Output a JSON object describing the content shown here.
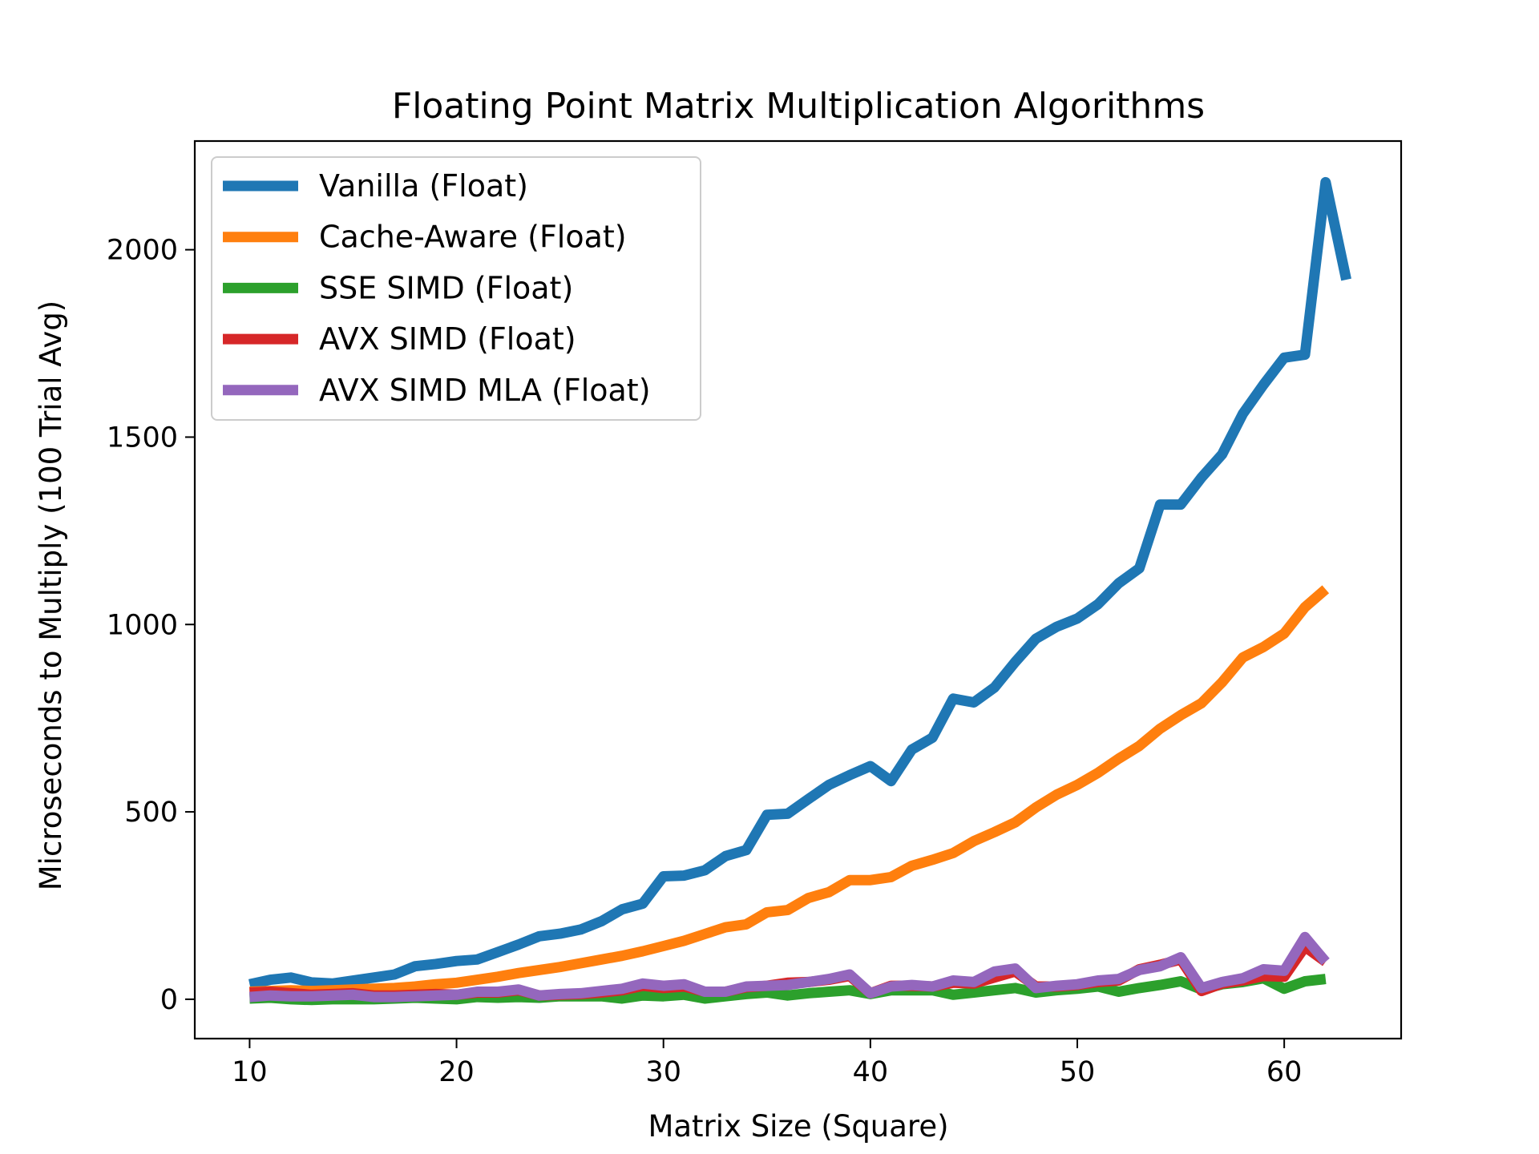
{
  "chart_data": {
    "type": "line",
    "title": "Floating Point Matrix Multiplication Algorithms",
    "xlabel": "Matrix Size (Square)",
    "ylabel": "Microseconds to Multiply (100 Trial Avg)",
    "xlim": [
      7.35,
      65.65
    ],
    "ylim": [
      -105,
      2290
    ],
    "xticks": [
      10,
      20,
      30,
      40,
      50,
      60
    ],
    "yticks": [
      0,
      500,
      1000,
      1500,
      2000
    ],
    "grid": false,
    "legend_position": "upper-left",
    "series": [
      {
        "name": "Vanilla (Float)",
        "color": "#1f77b4",
        "x": [
          10,
          11,
          12,
          13,
          14,
          15,
          16,
          17,
          18,
          19,
          20,
          21,
          22,
          23,
          24,
          25,
          26,
          27,
          28,
          29,
          30,
          31,
          32,
          33,
          34,
          35,
          36,
          37,
          38,
          39,
          40,
          41,
          42,
          43,
          44,
          45,
          46,
          47,
          48,
          49,
          50,
          51,
          52,
          53,
          54,
          55,
          56,
          57,
          58,
          59,
          60,
          61,
          62,
          63
        ],
        "y": [
          40,
          52,
          58,
          45,
          42,
          50,
          58,
          66,
          88,
          94,
          102,
          106,
          126,
          146,
          168,
          175,
          186,
          208,
          240,
          255,
          328,
          330,
          344,
          382,
          398,
          492,
          495,
          534,
          572,
          598,
          622,
          582,
          666,
          698,
          802,
          792,
          832,
          900,
          962,
          994,
          1016,
          1054,
          1110,
          1150,
          1320,
          1320,
          1392,
          1454,
          1562,
          1640,
          1712,
          1720,
          2180,
          1920
        ]
      },
      {
        "name": "Cache-Aware (Float)",
        "color": "#ff7f0e",
        "x": [
          10,
          11,
          12,
          13,
          14,
          15,
          16,
          17,
          18,
          19,
          20,
          21,
          22,
          23,
          24,
          25,
          26,
          27,
          28,
          29,
          30,
          31,
          32,
          33,
          34,
          35,
          36,
          37,
          38,
          39,
          40,
          41,
          42,
          43,
          44,
          45,
          46,
          47,
          48,
          49,
          50,
          51,
          52,
          53,
          54,
          55,
          56,
          57,
          58,
          59,
          60,
          61,
          62
        ],
        "y": [
          20,
          22,
          24,
          22,
          24,
          26,
          28,
          30,
          34,
          40,
          44,
          52,
          60,
          70,
          78,
          86,
          96,
          106,
          116,
          128,
          142,
          156,
          174,
          192,
          200,
          232,
          238,
          270,
          286,
          318,
          318,
          326,
          356,
          372,
          390,
          422,
          446,
          472,
          512,
          546,
          572,
          604,
          642,
          676,
          722,
          758,
          790,
          846,
          912,
          940,
          976,
          1046,
          1094
        ]
      },
      {
        "name": "SSE SIMD (Float)",
        "color": "#2ca02c",
        "x": [
          10,
          11,
          12,
          13,
          14,
          15,
          16,
          17,
          18,
          19,
          20,
          21,
          22,
          23,
          24,
          25,
          26,
          27,
          28,
          29,
          30,
          31,
          32,
          33,
          34,
          35,
          36,
          37,
          38,
          39,
          40,
          41,
          42,
          43,
          44,
          45,
          46,
          47,
          48,
          49,
          50,
          51,
          52,
          53,
          54,
          55,
          56,
          57,
          58,
          59,
          60,
          61,
          62
        ],
        "y": [
          2,
          4,
          0,
          -2,
          0,
          0,
          0,
          2,
          4,
          2,
          0,
          6,
          4,
          6,
          4,
          8,
          8,
          8,
          2,
          10,
          8,
          12,
          2,
          8,
          14,
          18,
          10,
          16,
          20,
          24,
          14,
          24,
          24,
          24,
          12,
          18,
          24,
          30,
          18,
          24,
          28,
          34,
          20,
          30,
          38,
          48,
          26,
          40,
          46,
          56,
          28,
          48,
          54
        ]
      },
      {
        "name": "AVX SIMD (Float)",
        "color": "#d62728",
        "x": [
          10,
          11,
          12,
          13,
          14,
          15,
          16,
          17,
          18,
          19,
          20,
          21,
          22,
          23,
          24,
          25,
          26,
          27,
          28,
          29,
          30,
          31,
          32,
          33,
          34,
          35,
          36,
          37,
          38,
          39,
          40,
          41,
          42,
          43,
          44,
          45,
          46,
          47,
          48,
          49,
          50,
          51,
          52,
          53,
          54,
          55,
          56,
          57,
          58,
          59,
          60,
          61,
          62
        ],
        "y": [
          18,
          20,
          16,
          12,
          14,
          16,
          10,
          10,
          12,
          14,
          12,
          18,
          18,
          24,
          10,
          12,
          14,
          18,
          24,
          36,
          30,
          34,
          20,
          20,
          32,
          36,
          44,
          46,
          52,
          62,
          16,
          36,
          36,
          34,
          44,
          42,
          58,
          74,
          34,
          34,
          38,
          46,
          50,
          80,
          92,
          106,
          22,
          42,
          50,
          62,
          60,
          140,
          100
        ]
      },
      {
        "name": "AVX SIMD MLA (Float)",
        "color": "#9467bd",
        "x": [
          10,
          11,
          12,
          13,
          14,
          15,
          16,
          17,
          18,
          19,
          20,
          21,
          22,
          23,
          24,
          25,
          26,
          27,
          28,
          29,
          30,
          31,
          32,
          33,
          34,
          35,
          36,
          37,
          38,
          39,
          40,
          41,
          42,
          43,
          44,
          45,
          46,
          47,
          48,
          49,
          50,
          51,
          52,
          53,
          54,
          55,
          56,
          57,
          58,
          59,
          60,
          61,
          62
        ],
        "y": [
          6,
          10,
          8,
          8,
          10,
          12,
          6,
          6,
          8,
          10,
          12,
          20,
          20,
          26,
          10,
          14,
          16,
          22,
          28,
          42,
          36,
          40,
          20,
          20,
          34,
          36,
          38,
          46,
          54,
          66,
          16,
          34,
          38,
          34,
          50,
          46,
          74,
          82,
          30,
          36,
          40,
          50,
          54,
          78,
          88,
          112,
          30,
          46,
          56,
          80,
          76,
          166,
          100
        ]
      }
    ]
  }
}
